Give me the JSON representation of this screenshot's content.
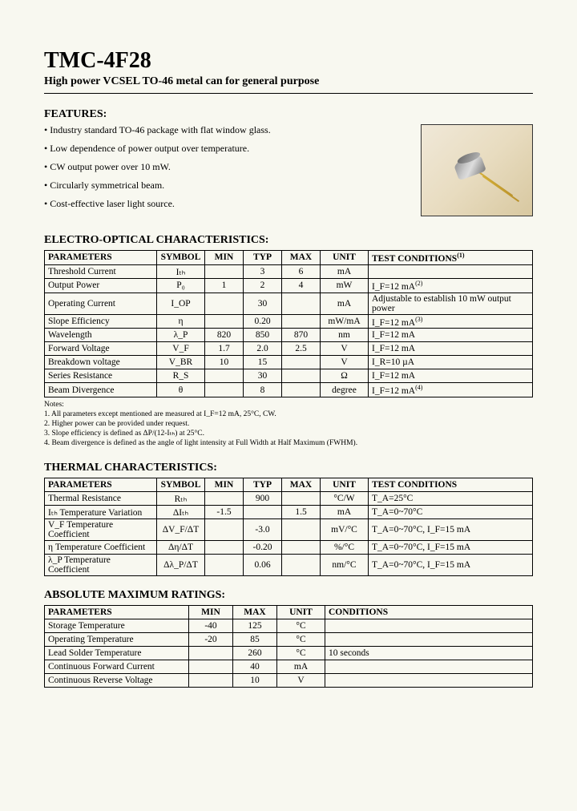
{
  "title": "TMC-4F28",
  "subtitle": "High power VCSEL TO-46 metal can for general purpose",
  "sections": {
    "features": "FEATURES:",
    "eo": "ELECTRO-OPTICAL CHARACTERISTICS:",
    "thermal": "THERMAL CHARACTERISTICS:",
    "abs": "ABSOLUTE MAXIMUM RATINGS:"
  },
  "features": [
    "Industry standard TO-46 package with flat window glass.",
    "Low dependence of power output over temperature.",
    "CW output power over 10 mW.",
    "Circularly symmetrical beam.",
    "Cost-effective laser light source."
  ],
  "eo_headers": [
    "PARAMETERS",
    "SYMBOL",
    "MIN",
    "TYP",
    "MAX",
    "UNIT",
    "TEST CONDITIONS"
  ],
  "eo_head_sup": "(1)",
  "eo_rows": [
    {
      "p": "Threshold Current",
      "s": "Iₜₕ",
      "min": "",
      "typ": "3",
      "max": "6",
      "u": "mA",
      "c": ""
    },
    {
      "p": "Output Power",
      "s": "P₀",
      "min": "1",
      "typ": "2",
      "max": "4",
      "u": "mW",
      "c": "I_F=12 mA",
      "csup": "(2)"
    },
    {
      "p": "Operating Current",
      "s": "I_OP",
      "min": "",
      "typ": "30",
      "max": "",
      "u": "mA",
      "c": "Adjustable to establish 10 mW output power"
    },
    {
      "p": "Slope Efficiency",
      "s": "η",
      "min": "",
      "typ": "0.20",
      "max": "",
      "u": "mW/mA",
      "c": "I_F=12 mA",
      "csup": "(3)"
    },
    {
      "p": "Wavelength",
      "s": "λ_P",
      "min": "820",
      "typ": "850",
      "max": "870",
      "u": "nm",
      "c": "I_F=12 mA"
    },
    {
      "p": "Forward Voltage",
      "s": "V_F",
      "min": "1.7",
      "typ": "2.0",
      "max": "2.5",
      "u": "V",
      "c": "I_F=12 mA"
    },
    {
      "p": "Breakdown voltage",
      "s": "V_BR",
      "min": "10",
      "typ": "15",
      "max": "",
      "u": "V",
      "c": "I_R=10 µA"
    },
    {
      "p": "Series Resistance",
      "s": "R_S",
      "min": "",
      "typ": "30",
      "max": "",
      "u": "Ω",
      "c": "I_F=12 mA"
    },
    {
      "p": "Beam Divergence",
      "s": "θ",
      "min": "",
      "typ": "8",
      "max": "",
      "u": "degree",
      "c": "I_F=12 mA",
      "csup": "(4)"
    }
  ],
  "eo_notes_head": "Notes:",
  "eo_notes": [
    "1.  All parameters except mentioned are measured at I_F=12 mA, 25°C, CW.",
    "2.  Higher power can be provided under request.",
    "3.  Slope efficiency is defined as ΔP/(12-Iₜₕ) at 25°C.",
    "4.  Beam divergence is defined as the angle of light intensity at Full Width at Half Maximum (FWHM)."
  ],
  "th_headers": [
    "PARAMETERS",
    "SYMBOL",
    "MIN",
    "TYP",
    "MAX",
    "UNIT",
    "TEST CONDITIONS"
  ],
  "th_rows": [
    {
      "p": "Thermal Resistance",
      "s": "Rₜₕ",
      "min": "",
      "typ": "900",
      "max": "",
      "u": "°C/W",
      "c": "T_A=25°C"
    },
    {
      "p": "Iₜₕ Temperature Variation",
      "s": "ΔIₜₕ",
      "min": "-1.5",
      "typ": "",
      "max": "1.5",
      "u": "mA",
      "c": "T_A=0~70°C"
    },
    {
      "p": "V_F Temperature Coefficient",
      "s": "ΔV_F/ΔT",
      "min": "",
      "typ": "-3.0",
      "max": "",
      "u": "mV/°C",
      "c": "T_A=0~70°C, I_F=15 mA"
    },
    {
      "p": "η Temperature Coefficient",
      "s": "Δη/ΔT",
      "min": "",
      "typ": "-0.20",
      "max": "",
      "u": "%/°C",
      "c": "T_A=0~70°C, I_F=15 mA"
    },
    {
      "p": "λ_P Temperature Coefficient",
      "s": "Δλ_P/ΔT",
      "min": "",
      "typ": "0.06",
      "max": "",
      "u": "nm/°C",
      "c": "T_A=0~70°C, I_F=15 mA"
    }
  ],
  "abs_headers": [
    "PARAMETERS",
    "MIN",
    "MAX",
    "UNIT",
    "CONDITIONS"
  ],
  "abs_rows": [
    {
      "p": "Storage Temperature",
      "min": "-40",
      "max": "125",
      "u": "°C",
      "c": ""
    },
    {
      "p": "Operating Temperature",
      "min": "-20",
      "max": "85",
      "u": "°C",
      "c": ""
    },
    {
      "p": "Lead Solder Temperature",
      "min": "",
      "max": "260",
      "u": "°C",
      "c": "10 seconds"
    },
    {
      "p": "Continuous Forward Current",
      "min": "",
      "max": "40",
      "u": "mA",
      "c": ""
    },
    {
      "p": "Continuous Reverse Voltage",
      "min": "",
      "max": "10",
      "u": "V",
      "c": ""
    }
  ],
  "colors": {
    "page_bg": "#f8f8f0",
    "text": "#000000",
    "border": "#000000",
    "img_bg_top": "#f0e8d8",
    "img_bg_bot": "#d8c8a0",
    "metal": "#b8b8b8",
    "lead": "#d4af37"
  }
}
